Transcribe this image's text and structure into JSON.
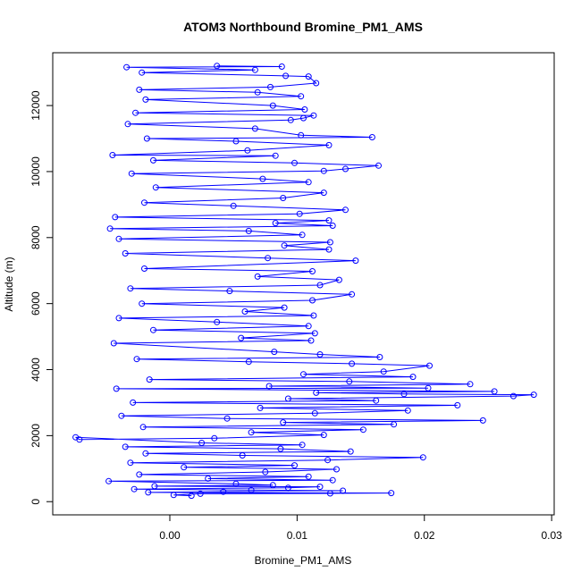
{
  "chart_data": {
    "type": "scatter",
    "title": "ATOM3 Northbound Bromine_PM1_AMS",
    "xlabel": "Bromine_PM1_AMS",
    "ylabel": "Altitude (m)",
    "xlim": [
      -0.0092,
      0.0302
    ],
    "ylim": [
      -400,
      13600
    ],
    "x_ticks": [
      0.0,
      0.01,
      0.02,
      0.03
    ],
    "x_tick_labels": [
      "0.00",
      "0.01",
      "0.02",
      "0.03"
    ],
    "y_ticks": [
      0,
      2000,
      4000,
      6000,
      8000,
      10000,
      12000
    ],
    "y_tick_labels": [
      "0",
      "2000",
      "4000",
      "6000",
      "8000",
      "10000",
      "12000"
    ],
    "grid": false,
    "legend": "none",
    "series_color": "#0000ff",
    "marker": "open-circle",
    "connected_with_lines": true,
    "series": [
      {
        "points": [
          [
            0.0017,
            180
          ],
          [
            0.0003,
            200
          ],
          [
            0.0024,
            240
          ],
          [
            0.0126,
            250
          ],
          [
            0.0174,
            260
          ],
          [
            -0.0017,
            280
          ],
          [
            0.0042,
            300
          ],
          [
            0.0136,
            330
          ],
          [
            0.0064,
            350
          ],
          [
            -0.0028,
            380
          ],
          [
            0.0093,
            420
          ],
          [
            0.0118,
            450
          ],
          [
            -0.0012,
            470
          ],
          [
            0.0081,
            500
          ],
          [
            0.0052,
            540
          ],
          [
            -0.0048,
            620
          ],
          [
            0.0128,
            650
          ],
          [
            0.003,
            700
          ],
          [
            0.0109,
            760
          ],
          [
            -0.0024,
            820
          ],
          [
            0.0075,
            900
          ],
          [
            0.0131,
            980
          ],
          [
            0.0011,
            1040
          ],
          [
            0.0098,
            1100
          ],
          [
            -0.0031,
            1180
          ],
          [
            0.0124,
            1260
          ],
          [
            0.0199,
            1340
          ],
          [
            0.0057,
            1400
          ],
          [
            -0.0019,
            1460
          ],
          [
            0.0142,
            1520
          ],
          [
            0.0087,
            1600
          ],
          [
            -0.0035,
            1660
          ],
          [
            0.0104,
            1720
          ],
          [
            0.0025,
            1780
          ],
          [
            -0.0074,
            1950
          ],
          [
            -0.0071,
            1880
          ],
          [
            0.0035,
            1920
          ],
          [
            0.0121,
            2020
          ],
          [
            0.0064,
            2100
          ],
          [
            0.0152,
            2180
          ],
          [
            -0.0021,
            2260
          ],
          [
            0.0176,
            2340
          ],
          [
            0.0089,
            2400
          ],
          [
            0.0246,
            2460
          ],
          [
            0.0045,
            2520
          ],
          [
            -0.0038,
            2600
          ],
          [
            0.0114,
            2680
          ],
          [
            0.0187,
            2760
          ],
          [
            0.0071,
            2840
          ],
          [
            0.0226,
            2920
          ],
          [
            -0.0029,
            3000
          ],
          [
            0.0162,
            3060
          ],
          [
            0.0093,
            3120
          ],
          [
            0.027,
            3200
          ],
          [
            0.0286,
            3240
          ],
          [
            0.0184,
            3260
          ],
          [
            0.0115,
            3300
          ],
          [
            0.0255,
            3340
          ],
          [
            -0.0042,
            3420
          ],
          [
            0.0203,
            3440
          ],
          [
            0.0078,
            3500
          ],
          [
            0.0236,
            3560
          ],
          [
            0.0141,
            3640
          ],
          [
            -0.0016,
            3700
          ],
          [
            0.0191,
            3780
          ],
          [
            0.0105,
            3860
          ],
          [
            0.0168,
            3940
          ],
          [
            0.0204,
            4120
          ],
          [
            0.0143,
            4180
          ],
          [
            0.0062,
            4240
          ],
          [
            -0.0026,
            4320
          ],
          [
            0.0165,
            4380
          ],
          [
            0.0118,
            4460
          ],
          [
            0.0082,
            4540
          ],
          [
            -0.0044,
            4800
          ],
          [
            0.0111,
            4880
          ],
          [
            0.0056,
            4960
          ],
          [
            0.0114,
            5100
          ],
          [
            -0.0013,
            5200
          ],
          [
            0.0109,
            5320
          ],
          [
            0.0037,
            5440
          ],
          [
            -0.004,
            5560
          ],
          [
            0.0113,
            5640
          ],
          [
            0.0059,
            5760
          ],
          [
            0.009,
            5880
          ],
          [
            -0.0022,
            6000
          ],
          [
            0.0112,
            6100
          ],
          [
            0.0143,
            6280
          ],
          [
            0.0047,
            6380
          ],
          [
            -0.0031,
            6460
          ],
          [
            0.0118,
            6560
          ],
          [
            0.0133,
            6720
          ],
          [
            0.0069,
            6820
          ],
          [
            0.0112,
            6980
          ],
          [
            -0.002,
            7060
          ],
          [
            0.0146,
            7300
          ],
          [
            0.0077,
            7380
          ],
          [
            -0.0035,
            7520
          ],
          [
            0.0125,
            7640
          ],
          [
            0.009,
            7760
          ],
          [
            0.0126,
            7860
          ],
          [
            -0.004,
            7960
          ],
          [
            0.0104,
            8080
          ],
          [
            0.0062,
            8200
          ],
          [
            -0.0047,
            8270
          ],
          [
            0.0128,
            8360
          ],
          [
            0.0083,
            8440
          ],
          [
            0.0125,
            8520
          ],
          [
            -0.0043,
            8620
          ],
          [
            0.0102,
            8720
          ],
          [
            0.0138,
            8840
          ],
          [
            0.005,
            8960
          ],
          [
            -0.002,
            9060
          ],
          [
            0.0089,
            9200
          ],
          [
            0.0121,
            9360
          ],
          [
            -0.0011,
            9520
          ],
          [
            0.0109,
            9680
          ],
          [
            0.0073,
            9780
          ],
          [
            -0.003,
            9940
          ],
          [
            0.0121,
            10020
          ],
          [
            0.0138,
            10080
          ],
          [
            0.0164,
            10180
          ],
          [
            0.0098,
            10260
          ],
          [
            -0.0013,
            10340
          ],
          [
            0.0083,
            10480
          ],
          [
            -0.0045,
            10500
          ],
          [
            0.0061,
            10640
          ],
          [
            0.0125,
            10800
          ],
          [
            0.0052,
            10920
          ],
          [
            -0.0018,
            11000
          ],
          [
            0.0159,
            11040
          ],
          [
            0.0103,
            11100
          ],
          [
            0.0067,
            11300
          ],
          [
            -0.0033,
            11440
          ],
          [
            0.0095,
            11560
          ],
          [
            0.0105,
            11620
          ],
          [
            0.0113,
            11700
          ],
          [
            -0.0027,
            11780
          ],
          [
            0.0106,
            11880
          ],
          [
            0.0081,
            12000
          ],
          [
            -0.0019,
            12180
          ],
          [
            0.0103,
            12280
          ],
          [
            0.0069,
            12400
          ],
          [
            -0.0024,
            12480
          ],
          [
            0.0079,
            12560
          ],
          [
            0.0115,
            12680
          ],
          [
            0.0109,
            12880
          ],
          [
            0.0091,
            12900
          ],
          [
            -0.0022,
            13000
          ],
          [
            0.0067,
            13080
          ],
          [
            -0.0034,
            13160
          ],
          [
            0.0088,
            13180
          ],
          [
            0.0037,
            13200
          ]
        ]
      }
    ]
  }
}
